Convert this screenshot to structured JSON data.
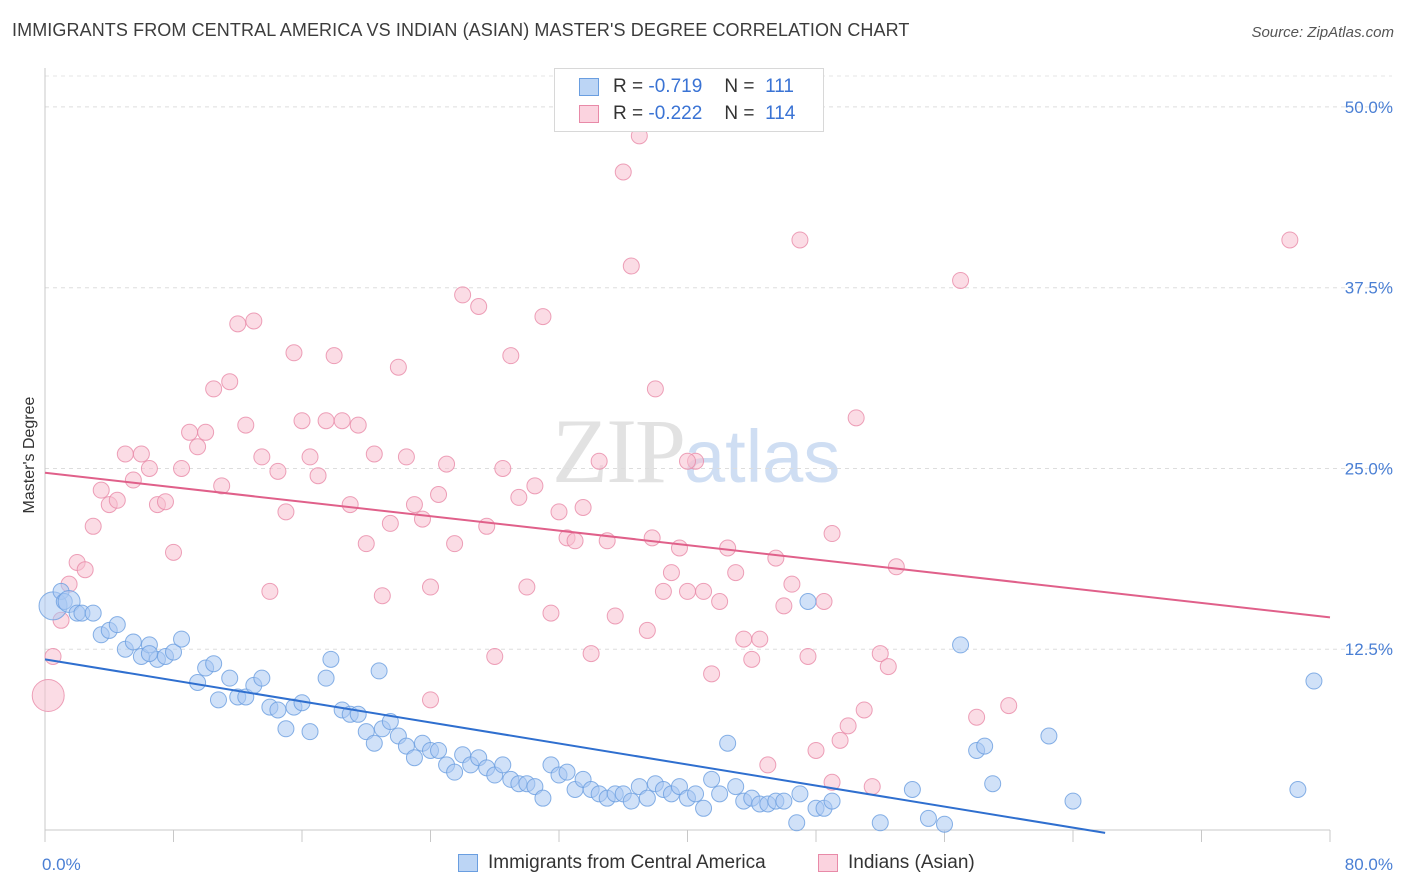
{
  "header": {
    "title": "IMMIGRANTS FROM CENTRAL AMERICA VS INDIAN (ASIAN) MASTER'S DEGREE CORRELATION CHART",
    "source": "Source: ZipAtlas.com"
  },
  "watermark": {
    "zip": "ZIP",
    "atlas": "atlas"
  },
  "legend": {
    "rows": [
      {
        "r_label": "R =",
        "r_value": "-0.719",
        "n_label": "N =",
        "n_value": "111",
        "color": "#a9c8f2",
        "border": "#6a9ee0"
      },
      {
        "r_label": "R =",
        "r_value": "-0.222",
        "n_label": "N =",
        "n_value": "114",
        "color": "#f7bfd0",
        "border": "#e88aa8"
      }
    ]
  },
  "bottom_legend": {
    "blue_label": "Immigrants from Central America",
    "pink_label": "Indians (Asian)"
  },
  "chart_data": {
    "type": "scatter",
    "xlabel": "",
    "ylabel": "Master's Degree",
    "xlim": [
      0,
      80
    ],
    "ylim": [
      0,
      50
    ],
    "x_tick_labels": [
      "0.0%",
      "80.0%"
    ],
    "y_ticks": [
      12.5,
      25.0,
      37.5,
      50.0
    ],
    "y_tick_labels": [
      "12.5%",
      "25.0%",
      "37.5%",
      "50.0%"
    ],
    "grid": "horizontal-dashed",
    "legend_position": "top-center",
    "colors": {
      "blue": "#6a9ee0",
      "blue_fill": "#a9c8f2",
      "blue_line": "#2f6fcf",
      "pink": "#e88aa8",
      "pink_fill": "#f7bfd0",
      "pink_line": "#e0608a"
    },
    "series": [
      {
        "name": "Immigrants from Central America",
        "trend": {
          "x": [
            0,
            66
          ],
          "y": [
            11.8,
            -0.2
          ]
        },
        "points": [
          [
            0.5,
            15.5
          ],
          [
            1.0,
            16.5
          ],
          [
            1.2,
            15.8
          ],
          [
            1.5,
            15.8
          ],
          [
            2.0,
            15.0
          ],
          [
            2.3,
            15.0
          ],
          [
            3.0,
            15.0
          ],
          [
            3.5,
            13.5
          ],
          [
            4.0,
            13.8
          ],
          [
            4.5,
            14.2
          ],
          [
            5.0,
            12.5
          ],
          [
            5.5,
            13.0
          ],
          [
            6.0,
            12.0
          ],
          [
            6.5,
            12.8
          ],
          [
            7.0,
            11.8
          ],
          [
            7.5,
            12.0
          ],
          [
            8.0,
            12.3
          ],
          [
            8.5,
            13.2
          ],
          [
            9.5,
            10.2
          ],
          [
            10.0,
            11.2
          ],
          [
            10.5,
            11.5
          ],
          [
            10.8,
            9.0
          ],
          [
            11.5,
            10.5
          ],
          [
            12.0,
            9.2
          ],
          [
            12.5,
            9.2
          ],
          [
            13.0,
            10.0
          ],
          [
            13.5,
            10.5
          ],
          [
            14.0,
            8.5
          ],
          [
            14.5,
            8.3
          ],
          [
            15.0,
            7.0
          ],
          [
            15.5,
            8.5
          ],
          [
            16.0,
            8.8
          ],
          [
            16.5,
            6.8
          ],
          [
            17.5,
            10.5
          ],
          [
            17.8,
            11.8
          ],
          [
            18.5,
            8.3
          ],
          [
            19.0,
            8.0
          ],
          [
            19.5,
            8.0
          ],
          [
            20.0,
            6.8
          ],
          [
            20.5,
            6.0
          ],
          [
            20.8,
            11.0
          ],
          [
            21.0,
            7.0
          ],
          [
            21.5,
            7.5
          ],
          [
            22.0,
            6.5
          ],
          [
            22.5,
            5.8
          ],
          [
            23.0,
            5.0
          ],
          [
            23.5,
            6.0
          ],
          [
            24.0,
            5.5
          ],
          [
            24.5,
            5.5
          ],
          [
            25.0,
            4.5
          ],
          [
            25.5,
            4.0
          ],
          [
            26.0,
            5.2
          ],
          [
            26.5,
            4.5
          ],
          [
            27.0,
            5.0
          ],
          [
            27.5,
            4.3
          ],
          [
            28.0,
            3.8
          ],
          [
            28.5,
            4.5
          ],
          [
            29.0,
            3.5
          ],
          [
            29.5,
            3.2
          ],
          [
            30.0,
            3.2
          ],
          [
            30.5,
            3.0
          ],
          [
            31.0,
            2.2
          ],
          [
            31.5,
            4.5
          ],
          [
            32.0,
            3.8
          ],
          [
            32.5,
            4.0
          ],
          [
            33.0,
            2.8
          ],
          [
            33.5,
            3.5
          ],
          [
            34.0,
            2.8
          ],
          [
            34.5,
            2.5
          ],
          [
            35.0,
            2.2
          ],
          [
            35.5,
            2.5
          ],
          [
            36.0,
            2.5
          ],
          [
            36.5,
            2.0
          ],
          [
            37.0,
            3.0
          ],
          [
            37.5,
            2.2
          ],
          [
            38.0,
            3.2
          ],
          [
            38.5,
            2.8
          ],
          [
            39.0,
            2.5
          ],
          [
            39.5,
            3.0
          ],
          [
            40.0,
            2.2
          ],
          [
            40.5,
            2.5
          ],
          [
            41.0,
            1.5
          ],
          [
            41.5,
            3.5
          ],
          [
            42.0,
            2.5
          ],
          [
            42.5,
            6.0
          ],
          [
            43.0,
            3.0
          ],
          [
            43.5,
            2.0
          ],
          [
            44.0,
            2.2
          ],
          [
            44.5,
            1.8
          ],
          [
            45.0,
            1.8
          ],
          [
            45.5,
            2.0
          ],
          [
            46.0,
            2.0
          ],
          [
            46.8,
            0.5
          ],
          [
            47.0,
            2.5
          ],
          [
            47.5,
            15.8
          ],
          [
            48.0,
            1.5
          ],
          [
            48.5,
            1.5
          ],
          [
            49.0,
            2.0
          ],
          [
            52.0,
            0.5
          ],
          [
            54.0,
            2.8
          ],
          [
            55.0,
            0.8
          ],
          [
            57.0,
            12.8
          ],
          [
            58.0,
            5.5
          ],
          [
            58.5,
            5.8
          ],
          [
            59.0,
            3.2
          ],
          [
            62.5,
            6.5
          ],
          [
            64.0,
            2.0
          ],
          [
            78.0,
            2.8
          ],
          [
            79.0,
            10.3
          ],
          [
            6.5,
            12.2
          ],
          [
            56.0,
            0.4
          ]
        ],
        "sizes": {
          "0.5,15.5": 14,
          "1.0,16.5": 13,
          "1.5,15.8": 11
        }
      },
      {
        "name": "Indians (Asian)",
        "trend": {
          "x": [
            0,
            80
          ],
          "y": [
            24.7,
            14.7
          ]
        },
        "points": [
          [
            0.2,
            9.3
          ],
          [
            0.5,
            12.0
          ],
          [
            1.0,
            14.5
          ],
          [
            1.5,
            17.0
          ],
          [
            2.0,
            18.5
          ],
          [
            2.5,
            18.0
          ],
          [
            3.0,
            21.0
          ],
          [
            3.5,
            23.5
          ],
          [
            4.0,
            22.5
          ],
          [
            4.5,
            22.8
          ],
          [
            5.0,
            26.0
          ],
          [
            5.5,
            24.2
          ],
          [
            6.0,
            26.0
          ],
          [
            6.5,
            25.0
          ],
          [
            7.0,
            22.5
          ],
          [
            7.5,
            22.7
          ],
          [
            8.0,
            19.2
          ],
          [
            8.5,
            25.0
          ],
          [
            9.0,
            27.5
          ],
          [
            9.5,
            26.5
          ],
          [
            10.0,
            27.5
          ],
          [
            10.5,
            30.5
          ],
          [
            11.0,
            23.8
          ],
          [
            11.5,
            31.0
          ],
          [
            12.0,
            35.0
          ],
          [
            12.5,
            28.0
          ],
          [
            13.0,
            35.2
          ],
          [
            13.5,
            25.8
          ],
          [
            14.0,
            16.5
          ],
          [
            14.5,
            24.8
          ],
          [
            15.0,
            22.0
          ],
          [
            15.5,
            33.0
          ],
          [
            16.0,
            28.3
          ],
          [
            16.5,
            25.8
          ],
          [
            17.0,
            24.5
          ],
          [
            17.5,
            28.3
          ],
          [
            18.0,
            32.8
          ],
          [
            18.5,
            28.3
          ],
          [
            19.0,
            22.5
          ],
          [
            19.5,
            28.0
          ],
          [
            20.0,
            19.8
          ],
          [
            20.5,
            26.0
          ],
          [
            21.0,
            16.2
          ],
          [
            21.5,
            21.2
          ],
          [
            22.0,
            32.0
          ],
          [
            22.5,
            25.8
          ],
          [
            23.0,
            22.5
          ],
          [
            23.5,
            21.5
          ],
          [
            24.0,
            16.8
          ],
          [
            24.5,
            23.2
          ],
          [
            25.0,
            25.3
          ],
          [
            25.5,
            19.8
          ],
          [
            26.0,
            37.0
          ],
          [
            27.0,
            36.2
          ],
          [
            27.5,
            21.0
          ],
          [
            28.0,
            12.0
          ],
          [
            28.5,
            25.0
          ],
          [
            29.0,
            32.8
          ],
          [
            29.5,
            23.0
          ],
          [
            30.0,
            16.8
          ],
          [
            30.5,
            23.8
          ],
          [
            31.0,
            35.5
          ],
          [
            31.5,
            15.0
          ],
          [
            32.0,
            22.0
          ],
          [
            32.5,
            20.2
          ],
          [
            33.0,
            20.0
          ],
          [
            33.5,
            22.3
          ],
          [
            34.0,
            12.2
          ],
          [
            34.5,
            25.5
          ],
          [
            35.0,
            20.0
          ],
          [
            35.5,
            14.8
          ],
          [
            36.0,
            45.5
          ],
          [
            36.5,
            39.0
          ],
          [
            37.0,
            48.0
          ],
          [
            37.5,
            13.8
          ],
          [
            38.0,
            30.5
          ],
          [
            38.5,
            16.5
          ],
          [
            39.0,
            17.8
          ],
          [
            39.5,
            19.5
          ],
          [
            40.0,
            16.5
          ],
          [
            40.5,
            25.5
          ],
          [
            41.0,
            16.5
          ],
          [
            41.5,
            10.8
          ],
          [
            42.0,
            15.8
          ],
          [
            42.5,
            19.5
          ],
          [
            43.0,
            17.8
          ],
          [
            43.5,
            13.2
          ],
          [
            44.0,
            11.8
          ],
          [
            44.5,
            13.2
          ],
          [
            45.0,
            4.5
          ],
          [
            45.5,
            18.8
          ],
          [
            46.0,
            15.5
          ],
          [
            46.5,
            17.0
          ],
          [
            47.0,
            40.8
          ],
          [
            47.5,
            12.0
          ],
          [
            48.0,
            5.5
          ],
          [
            48.5,
            15.8
          ],
          [
            49.0,
            20.5
          ],
          [
            49.5,
            6.2
          ],
          [
            50.0,
            7.2
          ],
          [
            50.5,
            28.5
          ],
          [
            51.0,
            8.3
          ],
          [
            51.5,
            3.0
          ],
          [
            52.0,
            12.2
          ],
          [
            52.5,
            11.3
          ],
          [
            53.0,
            18.2
          ],
          [
            57.0,
            38.0
          ],
          [
            58.0,
            7.8
          ],
          [
            60.0,
            8.6
          ],
          [
            77.5,
            40.8
          ],
          [
            49.0,
            3.3
          ],
          [
            24.0,
            9.0
          ],
          [
            37.8,
            20.2
          ],
          [
            40.0,
            25.5
          ]
        ],
        "sizes": {
          "0.2,9.3": 16,
          "0.5,12.0": 16,
          "1.0,14.5": 13
        }
      }
    ]
  }
}
